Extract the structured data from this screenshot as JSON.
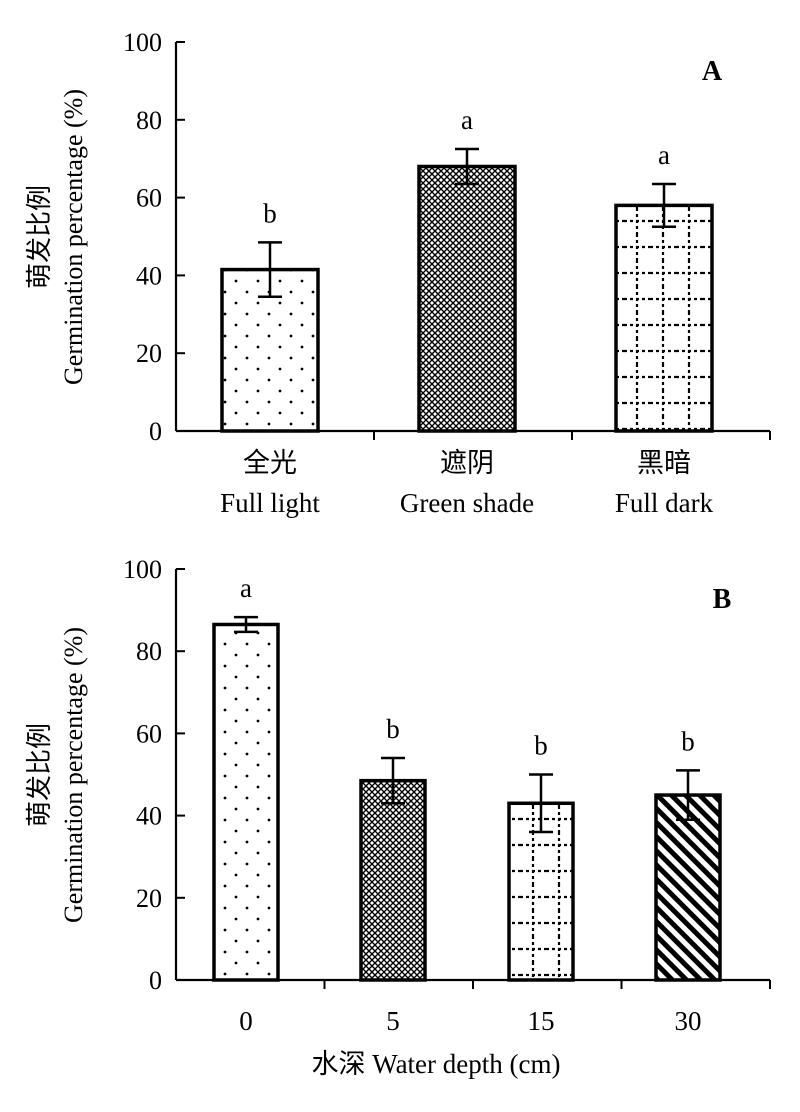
{
  "chart_data": [
    {
      "type": "bar",
      "panel_label": "A",
      "categories": [
        {
          "cn": "全光",
          "en": "Full light"
        },
        {
          "cn": "遮阴",
          "en": "Green shade"
        },
        {
          "cn": "黑暗",
          "en": "Full dark"
        }
      ],
      "values": [
        41.5,
        68.0,
        58.0
      ],
      "errors": [
        7.0,
        4.5,
        5.5
      ],
      "significance": [
        "b",
        "a",
        "a"
      ],
      "patterns": [
        "dots",
        "crosshatch",
        "grid"
      ],
      "ylabel_cn": "萌发比例",
      "ylabel_en": "Germination percentage (%)",
      "xlabel": "",
      "ylim": [
        0,
        100
      ],
      "yticks": [
        0,
        20,
        40,
        60,
        80,
        100
      ],
      "grid": false
    },
    {
      "type": "bar",
      "panel_label": "B",
      "categories": [
        {
          "cn": "",
          "en": "0"
        },
        {
          "cn": "",
          "en": "5"
        },
        {
          "cn": "",
          "en": "15"
        },
        {
          "cn": "",
          "en": "30"
        }
      ],
      "values": [
        86.5,
        48.5,
        43.0,
        45.0
      ],
      "errors": [
        1.8,
        5.5,
        7.0,
        6.0
      ],
      "significance": [
        "a",
        "b",
        "b",
        "b"
      ],
      "patterns": [
        "dots",
        "crosshatch",
        "grid",
        "diagonal"
      ],
      "ylabel_cn": "萌发比例",
      "ylabel_en": "Germination percentage (%)",
      "xlabel": "水深 Water depth (cm)",
      "ylim": [
        0,
        100
      ],
      "yticks": [
        0,
        20,
        40,
        60,
        80,
        100
      ],
      "grid": false
    }
  ]
}
